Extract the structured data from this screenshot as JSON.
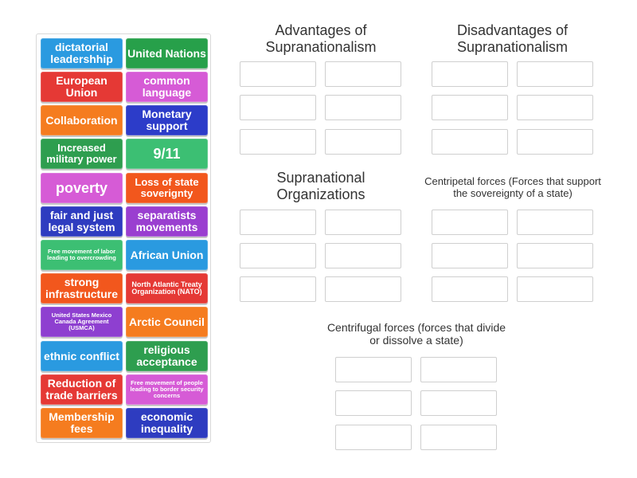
{
  "tiles": [
    {
      "label": "dictatorial leadershhip",
      "color": "#2a9ae0"
    },
    {
      "label": "United Nations",
      "color": "#27a04a"
    },
    {
      "label": "European Union",
      "color": "#e53935"
    },
    {
      "label": "common language",
      "color": "#d65bd6"
    },
    {
      "label": "Collaboration",
      "color": "#f57c1f"
    },
    {
      "label": "Monetary support",
      "color": "#2c3cc9"
    },
    {
      "label": "Increased military power",
      "color": "#2e9e4f"
    },
    {
      "label": "9/11",
      "color": "#3cbf73"
    },
    {
      "label": "poverty",
      "color": "#d65bd6"
    },
    {
      "label": "Loss of state soverignty",
      "color": "#f2571d"
    },
    {
      "label": "fair and just legal system",
      "color": "#2e3cc0"
    },
    {
      "label": "separatists movements",
      "color": "#9a3fd0"
    },
    {
      "label": "Free movement of labor leading to overcrowding",
      "color": "#3cbf73"
    },
    {
      "label": "African Union",
      "color": "#2a9ae0"
    },
    {
      "label": "strong infrastructure",
      "color": "#f2571d"
    },
    {
      "label": "North Atlantic Treaty Organization (NATO)",
      "color": "#e53935"
    },
    {
      "label": "United States Mexico Canada Agreement (USMCA)",
      "color": "#8e3fd0"
    },
    {
      "label": "Arctic Council",
      "color": "#f57c1f"
    },
    {
      "label": "ethnic conflict",
      "color": "#2a9ae0"
    },
    {
      "label": "religious acceptance",
      "color": "#2e9e4f"
    },
    {
      "label": "Reduction of trade barriers",
      "color": "#e53935"
    },
    {
      "label": "Free movement of people leading to border security concerns",
      "color": "#d65bd6"
    },
    {
      "label": "Membership fees",
      "color": "#f57c1f"
    },
    {
      "label": "economic inequality",
      "color": "#2e3cc0"
    }
  ],
  "groups": {
    "advantages": "Advantages of Supranationalism",
    "disadvantages": "Disadvantages of Supranationalism",
    "organizations": "Supranational Organizations",
    "centripetal": "Centripetal forces (Forces that support the sovereignty of a state)",
    "centrifugal": "Centrifugal forces (forces that divide or dissolve a state)"
  }
}
